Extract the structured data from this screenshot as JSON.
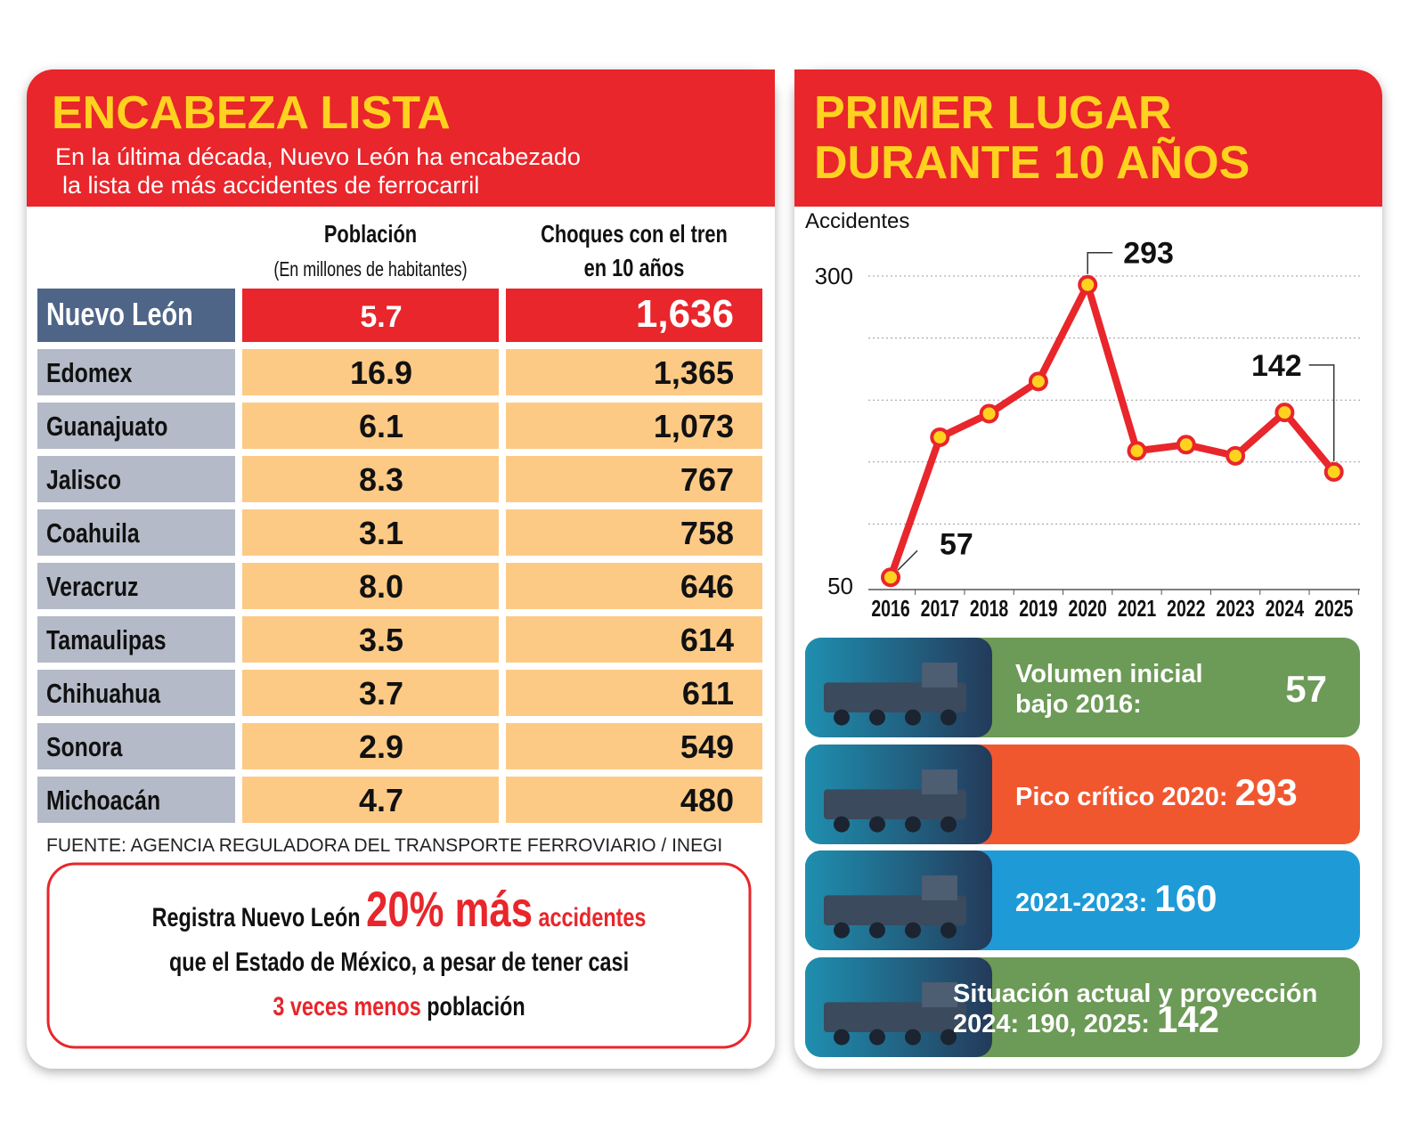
{
  "left": {
    "title": "ENCABEZA LISTA",
    "subtitle": [
      "En la última década, Nuevo León ha encabezado",
      "la lista de más accidentes de ferrocarril"
    ],
    "table": {
      "columns": [
        {
          "title": "Población",
          "subtitle": "(En millones de habitantes)"
        },
        {
          "title": "Choques con el tren",
          "subtitle": "en 10 años"
        }
      ],
      "rows": [
        [
          "Nuevo León",
          "5.7",
          "1,636"
        ],
        [
          "Edomex",
          "16.9",
          "1,365"
        ],
        [
          "Guanajuato",
          "6.1",
          "1,073"
        ],
        [
          "Jalisco",
          "8.3",
          "767"
        ],
        [
          "Coahuila",
          "3.1",
          "758"
        ],
        [
          "Veracruz",
          "8.0",
          "646"
        ],
        [
          "Tamaulipas",
          "3.5",
          "614"
        ],
        [
          "Chihuahua",
          "3.7",
          "611"
        ],
        [
          "Sonora",
          "2.9",
          "549"
        ],
        [
          "Michoacán",
          "4.7",
          "480"
        ]
      ]
    },
    "source": "FUENTE: AGENCIA REGULADORA DEL TRANSPORTE FERROVIARIO / INEGI",
    "note": [
      [
        {
          "text": "Registra Nuevo León "
        },
        {
          "text": "20% más",
          "red": true,
          "big": true
        },
        {
          "text": " accidentes",
          "red": true
        }
      ],
      [
        {
          "text": "que el Estado de México, a pesar de tener casi"
        }
      ],
      [
        {
          "text": "3 veces menos",
          "red": true
        },
        {
          "text": " población"
        }
      ]
    ]
  },
  "right": {
    "title": [
      "PRIMER LUGAR",
      "DURANTE 10 AÑOS"
    ],
    "cards": [
      {
        "lines": [
          "Volumen inicial",
          "bajo 2016:"
        ],
        "value": "57",
        "color": "#6c9a57"
      },
      {
        "lines": [
          "Pico crítico 2020: "
        ],
        "value": "293",
        "color": "#f1572f"
      },
      {
        "lines": [
          "2021-2023: "
        ],
        "value": "160",
        "color": "#1e9bd7"
      },
      {
        "lines": [
          "Situación actual y proyección",
          "2024: 190, 2025: "
        ],
        "value": "142",
        "color": "#6c9a57"
      }
    ]
  },
  "chart_data": {
    "type": "line",
    "ylabel": "Accidentes",
    "categories": [
      "2016",
      "2017",
      "2018",
      "2019",
      "2020",
      "2021",
      "2022",
      "2023",
      "2024",
      "2025"
    ],
    "values": [
      57,
      170,
      189,
      215,
      293,
      159,
      164,
      155,
      190,
      142
    ],
    "value_labels": [
      "57",
      null,
      null,
      null,
      "293",
      null,
      null,
      null,
      null,
      "142"
    ],
    "color": "#e8262b",
    "ylim": [
      50,
      300
    ],
    "yticks": [
      50,
      300
    ],
    "ygrid": [
      100,
      150,
      200,
      250,
      300
    ],
    "grid": true
  }
}
